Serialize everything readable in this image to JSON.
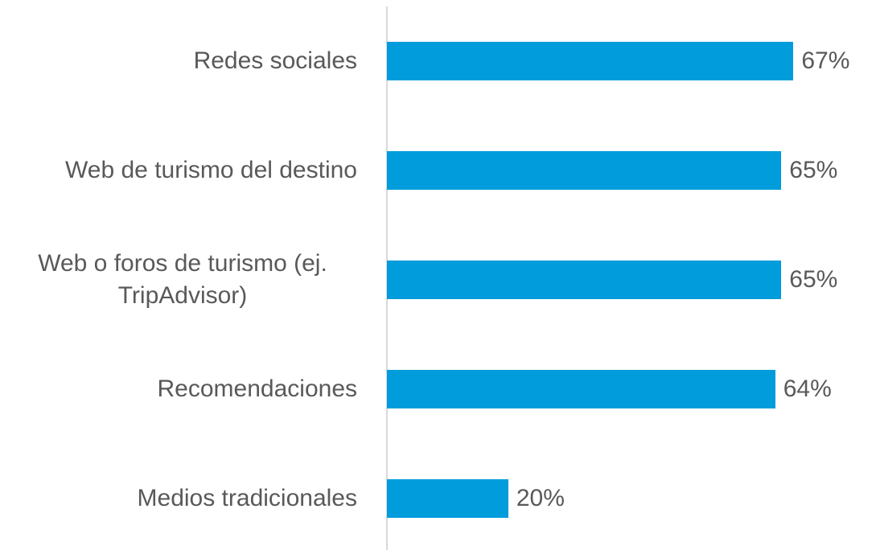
{
  "chart_data": {
    "type": "bar",
    "orientation": "horizontal",
    "categories": [
      "Redes sociales",
      "Web de turismo del destino",
      "Web o foros de turismo (ej. TripAdvisor)",
      "Recomendaciones",
      "Medios tradicionales"
    ],
    "values": [
      67,
      65,
      65,
      64,
      20
    ],
    "value_labels": [
      "67%",
      "65%",
      "65%",
      "64%",
      "20%"
    ],
    "color": "#019cdb",
    "xlim": [
      0,
      70
    ]
  }
}
